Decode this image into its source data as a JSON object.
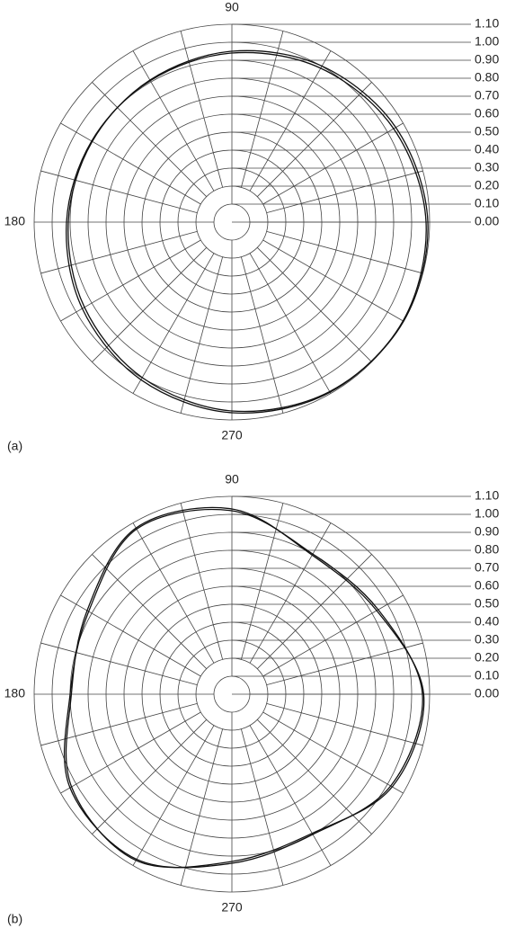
{
  "chart_data": [
    {
      "type": "polar",
      "label": "(a)",
      "theta": [
        0,
        30,
        60,
        90,
        120,
        150,
        180,
        210,
        240,
        270,
        300,
        330
      ],
      "series": [
        {
          "color": "#111111",
          "values": [
            1.09,
            1.053,
            1.002,
            0.95,
            0.912,
            0.897,
            0.91,
            0.947,
            0.998,
            1.05,
            1.088,
            1.103
          ]
        },
        {
          "color": "#111111",
          "values": [
            1.08,
            1.039,
            0.988,
            0.94,
            0.908,
            0.901,
            0.92,
            0.961,
            1.012,
            1.06,
            1.092,
            1.099
          ]
        }
      ],
      "rlim": [
        0,
        1.1
      ],
      "rticks": [
        {
          "value": 0,
          "label": "0.00"
        },
        {
          "value": 0.1,
          "label": "0.10"
        },
        {
          "value": 0.2,
          "label": "0.20"
        },
        {
          "value": 0.3,
          "label": "0.30"
        },
        {
          "value": 0.4,
          "label": "0.40"
        },
        {
          "value": 0.5,
          "label": "0.50"
        },
        {
          "value": 0.6,
          "label": "0.60"
        },
        {
          "value": 0.7,
          "label": "0.70"
        },
        {
          "value": 0.8,
          "label": "0.80"
        },
        {
          "value": 0.9,
          "label": "0.90"
        },
        {
          "value": 1.0,
          "label": "1.00"
        },
        {
          "value": 1.1,
          "label": "1.10"
        }
      ],
      "thetaticks": [
        90,
        180,
        270
      ]
    },
    {
      "type": "polar",
      "label": "(b)",
      "theta": [
        0,
        30,
        60,
        90,
        120,
        150,
        180,
        210,
        240,
        270,
        300,
        330
      ],
      "series": [
        {
          "color": "#111111",
          "values": [
            1.067,
            0.93,
            0.893,
            1.03,
            1.067,
            0.93,
            0.893,
            1.03,
            1.067,
            0.93,
            0.893,
            1.03
          ]
        },
        {
          "color": "#111111",
          "values": [
            1.06,
            0.94,
            0.9,
            1.02,
            1.06,
            0.92,
            0.9,
            1.04,
            1.06,
            0.94,
            0.9,
            1.02
          ]
        }
      ],
      "rlim": [
        0,
        1.1
      ],
      "rticks": [
        {
          "value": 0,
          "label": "0.00"
        },
        {
          "value": 0.1,
          "label": "0.10"
        },
        {
          "value": 0.2,
          "label": "0.20"
        },
        {
          "value": 0.3,
          "label": "0.30"
        },
        {
          "value": 0.4,
          "label": "0.40"
        },
        {
          "value": 0.5,
          "label": "0.50"
        },
        {
          "value": 0.6,
          "label": "0.60"
        },
        {
          "value": 0.7,
          "label": "0.70"
        },
        {
          "value": 0.8,
          "label": "0.80"
        },
        {
          "value": 0.9,
          "label": "0.90"
        },
        {
          "value": 1.0,
          "label": "1.00"
        },
        {
          "value": 1.1,
          "label": "1.10"
        }
      ],
      "thetaticks": [
        90,
        180,
        270
      ]
    }
  ]
}
